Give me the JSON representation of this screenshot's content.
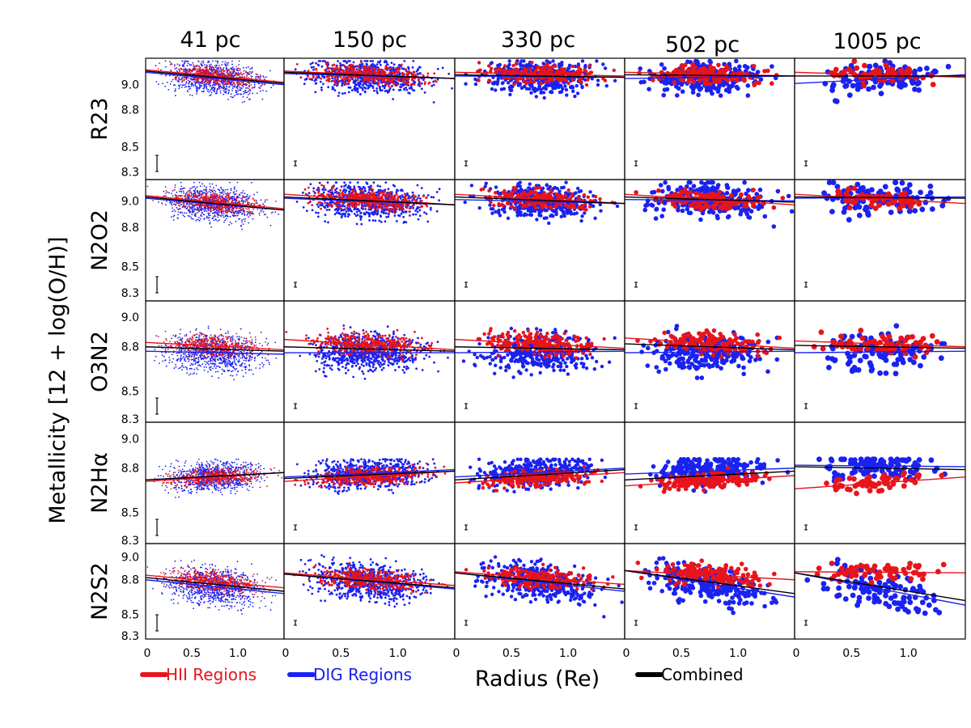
{
  "chart_data": {
    "type": "scatter",
    "ylabel": "Metallicity [12 + log(O/H)]",
    "xlabel": "Radius (Re)",
    "columns": [
      "41 pc",
      "150 pc",
      "330 pc",
      "502 pc",
      "1005 pc"
    ],
    "rows": [
      "R23",
      "N2O2",
      "O3N2",
      "N2Hα",
      "N2S2"
    ],
    "xlim": [
      0,
      1.5
    ],
    "x_ticks": [
      "0",
      "0.5",
      "1.0"
    ],
    "panel_ylim": {
      "R23": [
        8.25,
        9.2
      ],
      "N2O2": [
        8.25,
        9.15
      ],
      "O3N2": [
        8.3,
        9.1
      ],
      "N2Hα": [
        8.3,
        9.1
      ],
      "N2S2": [
        8.3,
        9.1
      ]
    },
    "y_ticks": {
      "R23": [
        "9.0",
        "8.8",
        "8.5",
        "8.3"
      ],
      "N2O2": [
        "9.0",
        "8.8",
        "8.5",
        "8.3"
      ],
      "O3N2": [
        "9.0",
        "8.8",
        "8.5",
        "8.3"
      ],
      "N2Hα": [
        "9.0",
        "8.8",
        "8.5",
        "8.3"
      ],
      "N2S2": [
        "9.0",
        "8.8",
        "8.5",
        "8.3"
      ]
    },
    "series": [
      {
        "name": "HII Regions",
        "color": "#e8141c"
      },
      {
        "name": "DIG Regions",
        "color": "#1a22f0"
      },
      {
        "name": "Combined",
        "color": "#000000"
      }
    ],
    "fits": {
      "R23": [
        {
          "hii": [
            9.12,
            9.02
          ],
          "dig": [
            9.1,
            9.0
          ],
          "comb": [
            9.11,
            9.01
          ]
        },
        {
          "hii": [
            9.11,
            9.05
          ],
          "dig": [
            9.09,
            9.05
          ],
          "comb": [
            9.1,
            9.05
          ]
        },
        {
          "hii": [
            9.1,
            9.07
          ],
          "dig": [
            9.07,
            9.06
          ],
          "comb": [
            9.08,
            9.06
          ]
        },
        {
          "hii": [
            9.1,
            9.07
          ],
          "dig": [
            9.05,
            9.07
          ],
          "comb": [
            9.08,
            9.07
          ]
        },
        {
          "hii": [
            9.1,
            9.06
          ],
          "dig": [
            9.01,
            9.08
          ],
          "comb": [
            9.07,
            9.07
          ]
        }
      ],
      "N2O2": [
        {
          "hii": [
            9.04,
            8.94
          ],
          "dig": [
            9.02,
            8.93
          ],
          "comb": [
            9.03,
            8.93
          ]
        },
        {
          "hii": [
            9.05,
            8.97
          ],
          "dig": [
            9.02,
            8.97
          ],
          "comb": [
            9.03,
            8.97
          ]
        },
        {
          "hii": [
            9.05,
            8.98
          ],
          "dig": [
            9.01,
            8.98
          ],
          "comb": [
            9.03,
            8.98
          ]
        },
        {
          "hii": [
            9.05,
            8.97
          ],
          "dig": [
            9.01,
            9.0
          ],
          "comb": [
            9.03,
            8.99
          ]
        },
        {
          "hii": [
            9.05,
            8.98
          ],
          "dig": [
            9.02,
            9.03
          ],
          "comb": [
            9.03,
            9.02
          ]
        }
      ],
      "O3N2": [
        {
          "hii": [
            8.83,
            8.78
          ],
          "dig": [
            8.77,
            8.75
          ],
          "comb": [
            8.8,
            8.77
          ]
        },
        {
          "hii": [
            8.85,
            8.78
          ],
          "dig": [
            8.76,
            8.76
          ],
          "comb": [
            8.8,
            8.77
          ]
        },
        {
          "hii": [
            8.85,
            8.79
          ],
          "dig": [
            8.76,
            8.77
          ],
          "comb": [
            8.8,
            8.78
          ]
        },
        {
          "hii": [
            8.86,
            8.79
          ],
          "dig": [
            8.76,
            8.77
          ],
          "comb": [
            8.82,
            8.78
          ]
        },
        {
          "hii": [
            8.84,
            8.8
          ],
          "dig": [
            8.76,
            8.77
          ],
          "comb": [
            8.81,
            8.79
          ]
        }
      ],
      "N2Hα": [
        {
          "hii": [
            8.71,
            8.77
          ],
          "dig": [
            8.72,
            8.77
          ],
          "comb": [
            8.72,
            8.77
          ]
        },
        {
          "hii": [
            8.71,
            8.78
          ],
          "dig": [
            8.74,
            8.79
          ],
          "comb": [
            8.73,
            8.78
          ]
        },
        {
          "hii": [
            8.7,
            8.77
          ],
          "dig": [
            8.74,
            8.8
          ],
          "comb": [
            8.72,
            8.79
          ]
        },
        {
          "hii": [
            8.68,
            8.75
          ],
          "dig": [
            8.76,
            8.8
          ],
          "comb": [
            8.72,
            8.78
          ]
        },
        {
          "hii": [
            8.66,
            8.74
          ],
          "dig": [
            8.82,
            8.81
          ],
          "comb": [
            8.81,
            8.79
          ]
        }
      ],
      "N2S2": [
        {
          "hii": [
            8.84,
            8.73
          ],
          "dig": [
            8.8,
            8.68
          ],
          "comb": [
            8.82,
            8.7
          ]
        },
        {
          "hii": [
            8.86,
            8.75
          ],
          "dig": [
            8.85,
            8.72
          ],
          "comb": [
            8.85,
            8.73
          ]
        },
        {
          "hii": [
            8.87,
            8.76
          ],
          "dig": [
            8.86,
            8.7
          ],
          "comb": [
            8.86,
            8.72
          ]
        },
        {
          "hii": [
            8.88,
            8.8
          ],
          "dig": [
            8.88,
            8.65
          ],
          "comb": [
            8.88,
            8.68
          ]
        },
        {
          "hii": [
            8.87,
            8.86
          ],
          "dig": [
            8.86,
            8.58
          ],
          "comb": [
            8.86,
            8.62
          ]
        }
      ]
    }
  },
  "legend": {
    "hii_label": "HII Regions",
    "dig_label": "DIG Regions",
    "combined_label": "Combined"
  }
}
